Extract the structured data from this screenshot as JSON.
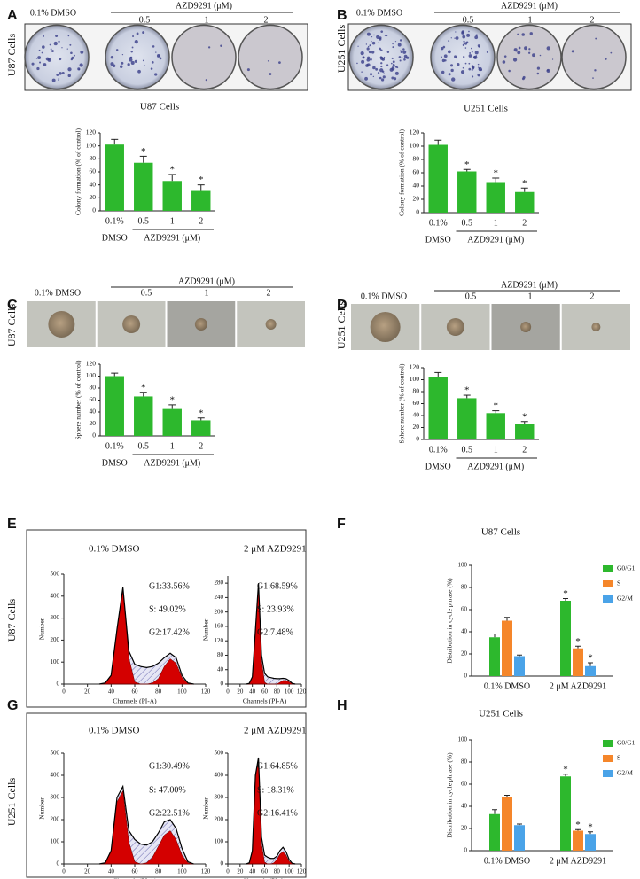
{
  "panels": [
    {
      "letter": "A",
      "cell_line": "U87 Cells",
      "control": "0.1% DMSO",
      "treatment": "AZD9291 (μM)",
      "doses": [
        "0.5",
        "1",
        "2"
      ]
    },
    {
      "letter": "B",
      "cell_line": "U251 Cells",
      "control": "0.1% DMSO",
      "treatment": "AZD9291 (μM)",
      "doses": [
        "0.5",
        "1",
        "2"
      ]
    },
    {
      "letter": "C",
      "cell_line": "U87 Cells",
      "control": "0.1% DMSO",
      "treatment": "AZD9291 (μM)",
      "doses": [
        "0.5",
        "1",
        "2"
      ]
    },
    {
      "letter": "D",
      "cell_line": "U251 Cells",
      "control": "0.1% DMSO",
      "treatment": "AZD9291 (μM)",
      "doses": [
        "0.5",
        "1",
        "2"
      ]
    },
    {
      "letter": "E",
      "cell_line": "U87 Cells"
    },
    {
      "letter": "F"
    },
    {
      "letter": "G",
      "cell_line": "U251 Cells"
    },
    {
      "letter": "H"
    }
  ],
  "chart_data": [
    {
      "type": "bar",
      "title": "U87 Cells",
      "ylabel": "Colony formation (% of control)",
      "categories": [
        "0.1%",
        "0.5",
        "1",
        "2"
      ],
      "x_group_labels": [
        "DMSO",
        "AZD9291 (μM)"
      ],
      "values": [
        102,
        74,
        46,
        32
      ],
      "errors": [
        8,
        10,
        10,
        8
      ],
      "significance": [
        null,
        "*",
        "*",
        "*"
      ],
      "color": "#2db82d",
      "ylim": [
        0,
        120
      ],
      "yticks": [
        0,
        20,
        40,
        60,
        80,
        100,
        120
      ]
    },
    {
      "type": "bar",
      "title": "U251 Cells",
      "ylabel": "Colony formation (% of control)",
      "categories": [
        "0.1%",
        "0.5",
        "1",
        "2"
      ],
      "x_group_labels": [
        "DMSO",
        "AZD9291 (μM)"
      ],
      "values": [
        102,
        62,
        46,
        31
      ],
      "errors": [
        7,
        3,
        6,
        6
      ],
      "significance": [
        null,
        "*",
        "*",
        "*"
      ],
      "color": "#2db82d",
      "ylim": [
        0,
        120
      ],
      "yticks": [
        0,
        20,
        40,
        60,
        80,
        100,
        120
      ]
    },
    {
      "type": "bar",
      "ylabel": "Sphere number (% of control)",
      "categories": [
        "0.1%",
        "0.5",
        "1",
        "2"
      ],
      "x_group_labels": [
        "DMSO",
        "AZD9291 (μM)"
      ],
      "values": [
        100,
        66,
        45,
        26
      ],
      "errors": [
        5,
        7,
        7,
        4
      ],
      "significance": [
        null,
        "*",
        "*",
        "*"
      ],
      "color": "#2db82d",
      "ylim": [
        0,
        120
      ],
      "yticks": [
        0,
        20,
        40,
        60,
        80,
        100,
        120
      ]
    },
    {
      "type": "bar",
      "ylabel": "Sphere number (% of control)",
      "categories": [
        "0.1%",
        "0.5",
        "1",
        "2"
      ],
      "x_group_labels": [
        "DMSO",
        "AZD9291 (μM)"
      ],
      "values": [
        104,
        69,
        44,
        26
      ],
      "errors": [
        8,
        5,
        4,
        4
      ],
      "significance": [
        null,
        "*",
        "*",
        "*"
      ],
      "color": "#2db82d",
      "ylim": [
        0,
        120
      ],
      "yticks": [
        0,
        20,
        40,
        60,
        80,
        100,
        120
      ]
    },
    {
      "type": "area",
      "title": "0.1% DMSO",
      "xlabel": "Channels (PI-A)",
      "ylabel": "Number",
      "annotations": [
        "G1:33.56%",
        "S: 49.02%",
        "G2:17.42%"
      ],
      "x": [
        30,
        35,
        40,
        45,
        50,
        55,
        60,
        65,
        70,
        75,
        80,
        85,
        90,
        95,
        100,
        105,
        110
      ],
      "xlim": [
        0,
        120
      ],
      "xticks": [
        0,
        20,
        40,
        60,
        80,
        100,
        120
      ],
      "ylim": [
        0,
        500
      ],
      "yticks": [
        0,
        100,
        200,
        300,
        400,
        500
      ],
      "series": [
        {
          "color": "#000000",
          "values": [
            0,
            5,
            40,
            250,
            440,
            150,
            90,
            80,
            75,
            80,
            95,
            120,
            140,
            120,
            40,
            5,
            0
          ]
        },
        {
          "color": "#d40000",
          "values": [
            0,
            5,
            40,
            250,
            430,
            120,
            10,
            0,
            0,
            0,
            0,
            0,
            0,
            0,
            0,
            0,
            0
          ]
        },
        {
          "color": "#d40000",
          "values": [
            0,
            0,
            0,
            0,
            0,
            0,
            0,
            0,
            0,
            5,
            25,
            80,
            115,
            95,
            30,
            3,
            0
          ]
        }
      ]
    },
    {
      "type": "area",
      "title": "2 μM AZD9291",
      "xlabel": "Channels (PI-A)",
      "ylabel": "Number",
      "annotations": [
        "G1:68.59%",
        "S: 23.93%",
        "G2:7.48%"
      ],
      "x": [
        30,
        35,
        40,
        45,
        50,
        55,
        60,
        65,
        70,
        75,
        80,
        85,
        90,
        95,
        100,
        105,
        110
      ],
      "xlim": [
        0,
        120
      ],
      "xticks": [
        0,
        20,
        40,
        60,
        80,
        100,
        120
      ],
      "ylim": [
        0,
        300
      ],
      "yticks": [
        0,
        40,
        80,
        120,
        160,
        200,
        240,
        280
      ],
      "series": [
        {
          "color": "#000000",
          "values": [
            0,
            2,
            20,
            150,
            280,
            80,
            30,
            20,
            18,
            16,
            15,
            15,
            16,
            15,
            10,
            2,
            0
          ]
        },
        {
          "color": "#d40000",
          "values": [
            0,
            2,
            20,
            150,
            275,
            65,
            5,
            0,
            0,
            0,
            0,
            0,
            0,
            0,
            0,
            0,
            0
          ]
        },
        {
          "color": "#d40000",
          "values": [
            0,
            0,
            0,
            0,
            0,
            0,
            0,
            0,
            0,
            0,
            0,
            5,
            10,
            10,
            6,
            1,
            0
          ]
        }
      ]
    },
    {
      "type": "area",
      "title": "0.1% DMSO",
      "xlabel": "Channels (PI-A)",
      "ylabel": "Number",
      "annotations": [
        "G1:30.49%",
        "S: 47.00%",
        "G2:22.51%"
      ],
      "x": [
        30,
        35,
        40,
        45,
        50,
        55,
        60,
        65,
        70,
        75,
        80,
        85,
        90,
        95,
        100,
        105,
        110
      ],
      "xlim": [
        0,
        120
      ],
      "xticks": [
        0,
        20,
        40,
        60,
        80,
        100,
        120
      ],
      "ylim": [
        0,
        500
      ],
      "yticks": [
        0,
        100,
        200,
        300,
        400,
        500
      ],
      "series": [
        {
          "color": "#000000",
          "values": [
            0,
            5,
            60,
            300,
            350,
            150,
            110,
            90,
            85,
            100,
            140,
            190,
            200,
            160,
            70,
            10,
            0
          ]
        },
        {
          "color": "#d40000",
          "values": [
            0,
            5,
            60,
            280,
            330,
            100,
            10,
            0,
            0,
            0,
            0,
            0,
            0,
            0,
            0,
            0,
            0
          ]
        },
        {
          "color": "#d40000",
          "values": [
            0,
            0,
            0,
            0,
            0,
            0,
            0,
            0,
            5,
            30,
            80,
            130,
            150,
            110,
            40,
            5,
            0
          ]
        }
      ]
    },
    {
      "type": "area",
      "title": "2 μM AZD9291",
      "xlabel": "Channels (PI-A)",
      "ylabel": "Number",
      "annotations": [
        "G1:64.85%",
        "S: 18.31%",
        "G2:16.41%"
      ],
      "x": [
        30,
        35,
        40,
        45,
        50,
        55,
        60,
        65,
        70,
        75,
        80,
        85,
        90,
        95,
        100,
        105,
        110
      ],
      "xlim": [
        0,
        120
      ],
      "xticks": [
        0,
        20,
        40,
        60,
        80,
        100,
        120
      ],
      "ylim": [
        0,
        500
      ],
      "yticks": [
        0,
        100,
        200,
        300,
        400,
        500
      ],
      "series": [
        {
          "color": "#000000",
          "values": [
            0,
            5,
            60,
            400,
            480,
            120,
            40,
            30,
            25,
            25,
            35,
            60,
            75,
            55,
            20,
            3,
            0
          ]
        },
        {
          "color": "#d40000",
          "values": [
            0,
            5,
            60,
            390,
            470,
            90,
            8,
            0,
            0,
            0,
            0,
            0,
            0,
            0,
            0,
            0,
            0
          ]
        },
        {
          "color": "#d40000",
          "values": [
            0,
            0,
            0,
            0,
            0,
            0,
            0,
            0,
            0,
            5,
            20,
            45,
            55,
            40,
            12,
            2,
            0
          ]
        }
      ]
    },
    {
      "type": "grouped_bar",
      "title": "U87 Cells",
      "ylabel": "Distribution in cycle phrase (%)",
      "categories": [
        "0.1% DMSO",
        "2 μM AZD9291"
      ],
      "legend": "upper right",
      "ylim": [
        0,
        100
      ],
      "yticks": [
        0,
        20,
        40,
        60,
        80,
        100
      ],
      "series": [
        {
          "name": "G0/G1",
          "color": "#2db82d",
          "values": [
            35,
            68
          ],
          "errors": [
            3,
            2
          ],
          "significance": [
            null,
            "*"
          ]
        },
        {
          "name": "S",
          "color": "#f5862a",
          "values": [
            50,
            25
          ],
          "errors": [
            3,
            2
          ],
          "significance": [
            null,
            "*"
          ]
        },
        {
          "name": "G2/M",
          "color": "#4aa3e8",
          "values": [
            18,
            9
          ],
          "errors": [
            1,
            3
          ],
          "significance": [
            null,
            "*"
          ]
        }
      ]
    },
    {
      "type": "grouped_bar",
      "title": "U251 Cells",
      "ylabel": "Distribution in cycle phrase (%)",
      "categories": [
        "0.1% DMSO",
        "2 μM AZD9291"
      ],
      "legend": "upper right",
      "ylim": [
        0,
        100
      ],
      "yticks": [
        0,
        20,
        40,
        60,
        80,
        100
      ],
      "series": [
        {
          "name": "G0/G1",
          "color": "#2db82d",
          "values": [
            33,
            67
          ],
          "errors": [
            4,
            2
          ],
          "significance": [
            null,
            "*"
          ]
        },
        {
          "name": "S",
          "color": "#f5862a",
          "values": [
            48,
            18
          ],
          "errors": [
            2,
            1
          ],
          "significance": [
            null,
            "*"
          ]
        },
        {
          "name": "G2/M",
          "color": "#4aa3e8",
          "values": [
            23,
            15
          ],
          "errors": [
            1,
            2
          ],
          "significance": [
            null,
            "*"
          ]
        }
      ]
    }
  ]
}
